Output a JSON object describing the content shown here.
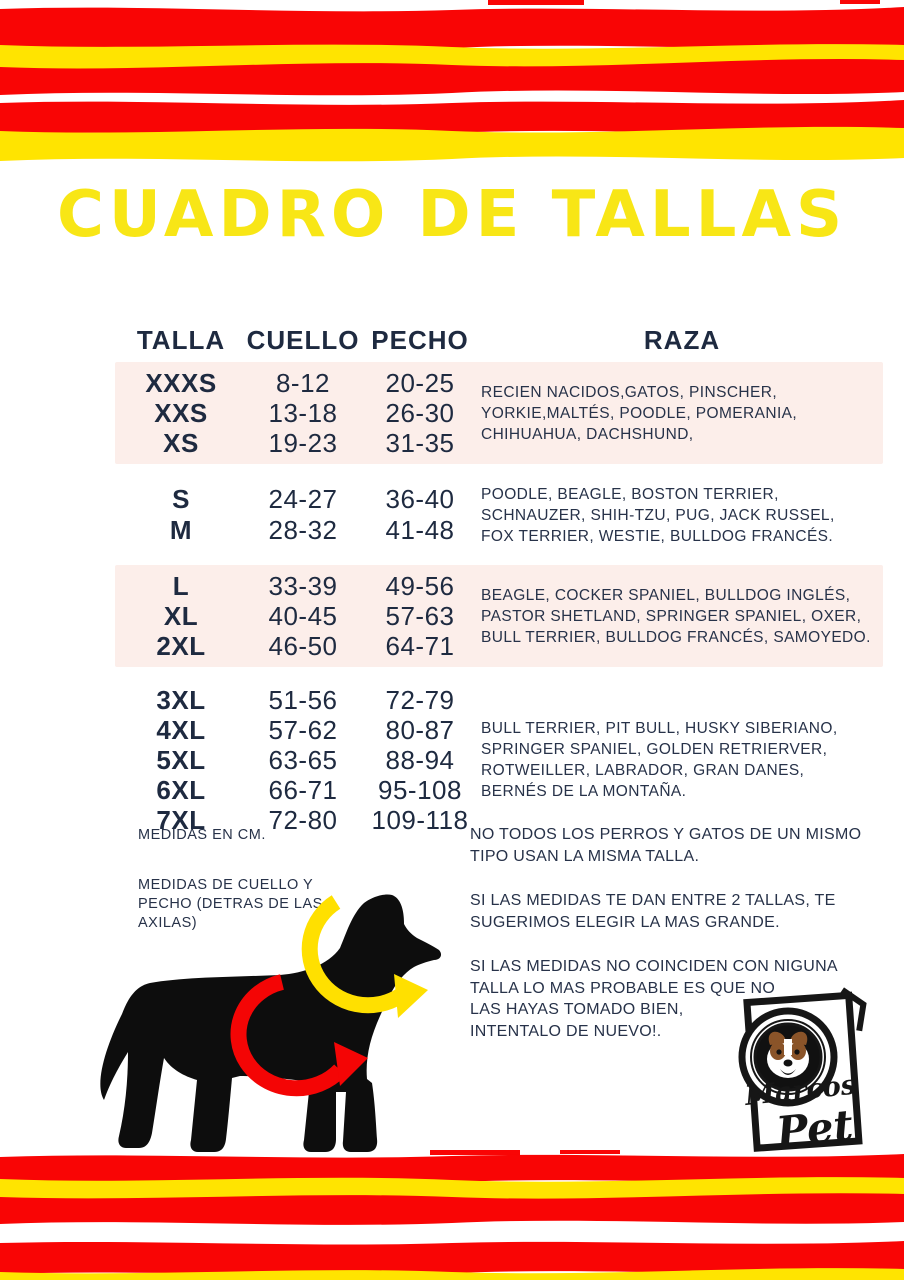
{
  "title": "CUADRO DE TALLAS",
  "colors": {
    "stripe_red": "#f90505",
    "stripe_yellow": "#ffe400",
    "title_yellow": "#f8e616",
    "text_navy": "#1e2a40",
    "row_pink": "#fceeea",
    "dog_black": "#0d0d0d",
    "arrow_neck_yellow": "#ffe000",
    "arrow_chest_red": "#f40505"
  },
  "table": {
    "headers": [
      "TALLA",
      "CUELLO",
      "PECHO",
      "RAZA"
    ],
    "groups": [
      {
        "highlight": true,
        "rows": [
          {
            "talla": "XXXS",
            "cuello": "8-12",
            "pecho": "20-25"
          },
          {
            "talla": "XXS",
            "cuello": "13-18",
            "pecho": "26-30"
          },
          {
            "talla": "XS",
            "cuello": "19-23",
            "pecho": "31-35"
          }
        ],
        "raza": "RECIEN NACIDOS,GATOS, PINSCHER,\nYORKIE,MALTÉS, POODLE, POMERANIA,\nCHIHUAHUA, DACHSHUND,"
      },
      {
        "highlight": false,
        "rows": [
          {
            "talla": "S",
            "cuello": "24-27",
            "pecho": "36-40"
          },
          {
            "talla": "M",
            "cuello": "28-32",
            "pecho": "41-48"
          }
        ],
        "raza": "POODLE, BEAGLE, BOSTON TERRIER,\nSCHNAUZER, SHIH-TZU, PUG, JACK RUSSEL,\nFOX TERRIER, WESTIE, BULLDOG FRANCÉS."
      },
      {
        "highlight": true,
        "rows": [
          {
            "talla": "L",
            "cuello": "33-39",
            "pecho": "49-56"
          },
          {
            "talla": "XL",
            "cuello": "40-45",
            "pecho": "57-63"
          },
          {
            "talla": "2XL",
            "cuello": "46-50",
            "pecho": "64-71"
          }
        ],
        "raza": "BEAGLE, COCKER SPANIEL, BULLDOG INGLÉS,\nPASTOR SHETLAND, SPRINGER SPANIEL, OXER,\nBULL TERRIER, BULLDOG FRANCÉS, SAMOYEDO."
      },
      {
        "highlight": false,
        "rows": [
          {
            "talla": "3XL",
            "cuello": "51-56",
            "pecho": "72-79"
          },
          {
            "talla": "4XL",
            "cuello": "57-62",
            "pecho": "80-87"
          },
          {
            "talla": "5XL",
            "cuello": "63-65",
            "pecho": "88-94"
          },
          {
            "talla": "6XL",
            "cuello": "66-71",
            "pecho": "95-108"
          },
          {
            "talla": "7XL",
            "cuello": "72-80",
            "pecho": "109-118"
          }
        ],
        "raza": "BULL TERRIER, PIT BULL, HUSKY SIBERIANO,\nSPRINGER SPANIEL, GOLDEN RETRIERVER,\nROTWEILLER, LABRADOR, GRAN DANES,\nBERNÉS DE LA MONTAÑA."
      }
    ]
  },
  "notes": {
    "units": "MEDIDAS EN CM.",
    "how_to_measure": "MEDIDAS DE CUELLO Y\nPECHO (DETRAS DE LAS\nAXILAS)"
  },
  "tips": {
    "p1": "NO TODOS LOS PERROS Y GATOS DE UN MISMO\nTIPO USAN LA MISMA TALLA.",
    "p2": "SI LAS MEDIDAS TE DAN ENTRE 2 TALLAS, TE\nSUGERIMOS ELEGIR LA MAS GRANDE.",
    "p3": "SI LAS MEDIDAS NO COINCIDEN CON NIGUNA\nTALLA LO MAS PROBABLE ES QUE NO\nLAS HAYAS TOMADO BIEN,\nINTENTALO DE NUEVO!."
  },
  "logo": {
    "line1": "Marcos",
    "line2": "Pet"
  }
}
